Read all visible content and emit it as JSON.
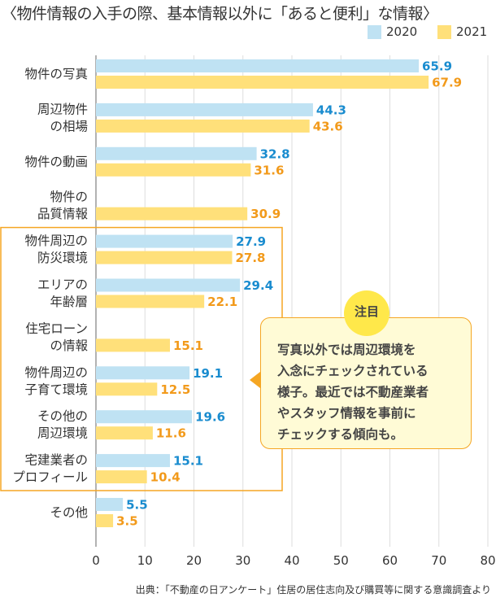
{
  "chart_data": {
    "type": "bar",
    "orientation": "horizontal",
    "title": "〈物件情報の入手の際、基本情報以外に「あると便利」な情報〉",
    "categories": [
      "物件の写真",
      "周辺物件\nの相場",
      "物件の動画",
      "物件の\n品質情報",
      "物件周辺の\n防災環境",
      "エリアの\n年齢層",
      "住宅ローン\nの情報",
      "物件周辺の\n子育て環境",
      "その他の\n周辺環境",
      "宅建業者の\nプロフィール",
      "その他"
    ],
    "series": [
      {
        "name": "2020",
        "color": "#bfe2f3",
        "label_color": "#1a8ccf",
        "values": [
          65.9,
          44.3,
          32.8,
          null,
          27.9,
          29.4,
          null,
          19.1,
          19.6,
          15.1,
          5.5
        ]
      },
      {
        "name": "2021",
        "color": "#ffe07a",
        "label_color": "#f29a1b",
        "values": [
          67.9,
          43.6,
          31.6,
          30.9,
          27.8,
          22.1,
          15.1,
          12.5,
          11.6,
          10.4,
          3.5
        ]
      }
    ],
    "xlim": [
      0,
      80
    ],
    "xticks": [
      0,
      10,
      20,
      30,
      40,
      50,
      60,
      70,
      80
    ],
    "grid": true,
    "legend": "top-right",
    "highlight_range": [
      "物件周辺の\n防災環境",
      "宅建業者の\nプロフィール"
    ],
    "highlight_color": "#f5a623"
  },
  "note": {
    "badge": "注目",
    "text": "写真以外では周辺環境を\n入念にチェックされている\n様子。最近では不動産業者\nやスタッフ情報を事前に\nチェックする傾向も。"
  },
  "source": "出典：「不動産の日アンケート」住居の居住志向及び購買等に関する意識調査より"
}
